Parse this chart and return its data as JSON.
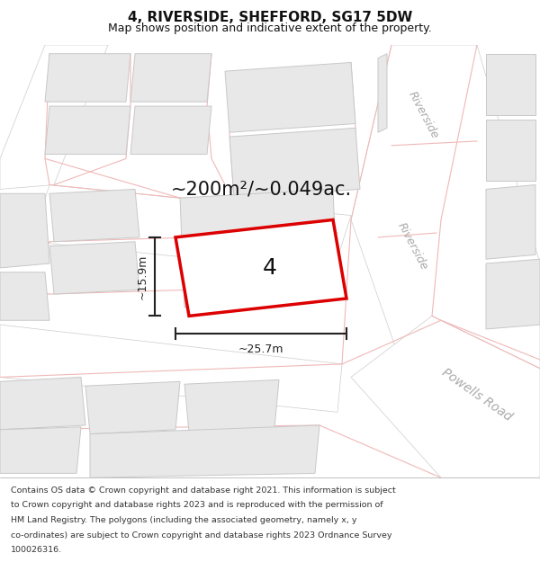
{
  "title": "4, RIVERSIDE, SHEFFORD, SG17 5DW",
  "subtitle": "Map shows position and indicative extent of the property.",
  "area_label": "~200m²/~0.049ac.",
  "property_number": "4",
  "dim_width": "~25.7m",
  "dim_height": "~15.9m",
  "street_label_riverside_top": "Riverside",
  "street_label_riverside_mid": "Riverside",
  "street_label_powells": "Powells Road",
  "footer_lines": [
    "Contains OS data © Crown copyright and database right 2021. This information is subject",
    "to Crown copyright and database rights 2023 and is reproduced with the permission of",
    "HM Land Registry. The polygons (including the associated geometry, namely x, y",
    "co-ordinates) are subject to Crown copyright and database rights 2023 Ordnance Survey",
    "100026316."
  ],
  "map_bg": "#ffffff",
  "building_fill": "#e8e8e8",
  "building_edge": "#c8c8c8",
  "road_line_color": "#f0b8b8",
  "road_edge_color": "#d0d0d0",
  "red_line_color": "#dd0000",
  "dim_color": "#222222",
  "text_color": "#111111",
  "street_color": "#aaaaaa",
  "title_fontsize": 11,
  "subtitle_fontsize": 9,
  "area_fontsize": 15,
  "num_fontsize": 18,
  "dim_fontsize": 9,
  "street_fontsize": 9,
  "footer_fontsize": 6.8
}
